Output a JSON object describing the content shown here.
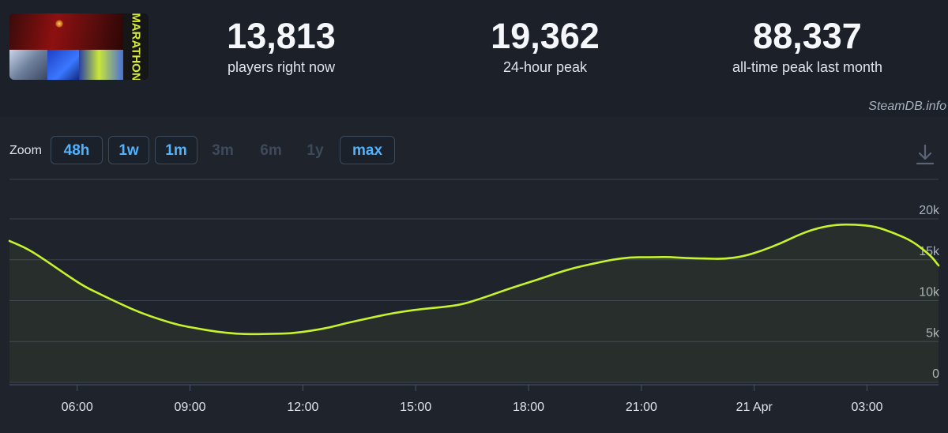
{
  "header": {
    "capsule_logo_text": "MARATHON",
    "stats": [
      {
        "value": "13,813",
        "label": "players right now"
      },
      {
        "value": "19,362",
        "label": "24-hour peak"
      },
      {
        "value": "88,337",
        "label": "all-time peak last month"
      }
    ]
  },
  "source_credit": "SteamDB.info",
  "zoom": {
    "label": "Zoom",
    "buttons": [
      {
        "label": "48h",
        "enabled": true
      },
      {
        "label": "1w",
        "enabled": true
      },
      {
        "label": "1m",
        "enabled": true
      },
      {
        "label": "3m",
        "enabled": false
      },
      {
        "label": "6m",
        "enabled": false
      },
      {
        "label": "1y",
        "enabled": false
      },
      {
        "label": "max",
        "enabled": true
      }
    ]
  },
  "download_icon": "download-icon",
  "colors": {
    "line": "#c6f22e",
    "accent": "#4fb3ff",
    "grid": "#3a4250",
    "background": "#1b2029"
  },
  "chart_data": {
    "type": "area",
    "title": "",
    "xlabel": "",
    "ylabel": "",
    "y_axis_side": "right",
    "grid": true,
    "ylim": [
      0,
      20000
    ],
    "y_ticks": [
      {
        "value": 0,
        "label": "0"
      },
      {
        "value": 5000,
        "label": "5k"
      },
      {
        "value": 10000,
        "label": "10k"
      },
      {
        "value": 15000,
        "label": "15k"
      },
      {
        "value": 20000,
        "label": "20k"
      }
    ],
    "x_ticks": [
      "06:00",
      "09:00",
      "12:00",
      "15:00",
      "18:00",
      "21:00",
      "21 Apr",
      "03:00"
    ],
    "x_tick_hours": [
      6,
      9,
      12,
      15,
      18,
      21,
      24,
      27
    ],
    "xlim_hours": [
      4.2,
      28.9
    ],
    "series": [
      {
        "hours": [
          4.2,
          4.7,
          5.2,
          5.7,
          6.2,
          6.7,
          7.2,
          7.7,
          8.2,
          8.7,
          9.2,
          9.7,
          10.2,
          10.7,
          11.2,
          11.7,
          12.2,
          12.7,
          13.2,
          13.7,
          14.2,
          14.7,
          15.2,
          15.7,
          16.2,
          16.7,
          17.2,
          17.7,
          18.2,
          18.7,
          19.2,
          19.7,
          20.2,
          20.7,
          21.2,
          21.7,
          22.2,
          22.7,
          23.2,
          23.7,
          24.2,
          24.7,
          25.2,
          25.7,
          26.2,
          26.7,
          27.2,
          27.7,
          28.2,
          28.7,
          28.9
        ],
        "values": [
          17300,
          16300,
          14800,
          13200,
          11700,
          10600,
          9500,
          8500,
          7700,
          7000,
          6600,
          6200,
          5950,
          5900,
          5950,
          6000,
          6300,
          6700,
          7300,
          7800,
          8300,
          8700,
          9000,
          9200,
          9500,
          10200,
          11000,
          11800,
          12500,
          13300,
          14000,
          14500,
          15000,
          15300,
          15300,
          15350,
          15200,
          15150,
          15100,
          15400,
          16100,
          17000,
          18100,
          18900,
          19300,
          19300,
          19100,
          18300,
          17300,
          15500,
          14300
        ]
      }
    ]
  }
}
